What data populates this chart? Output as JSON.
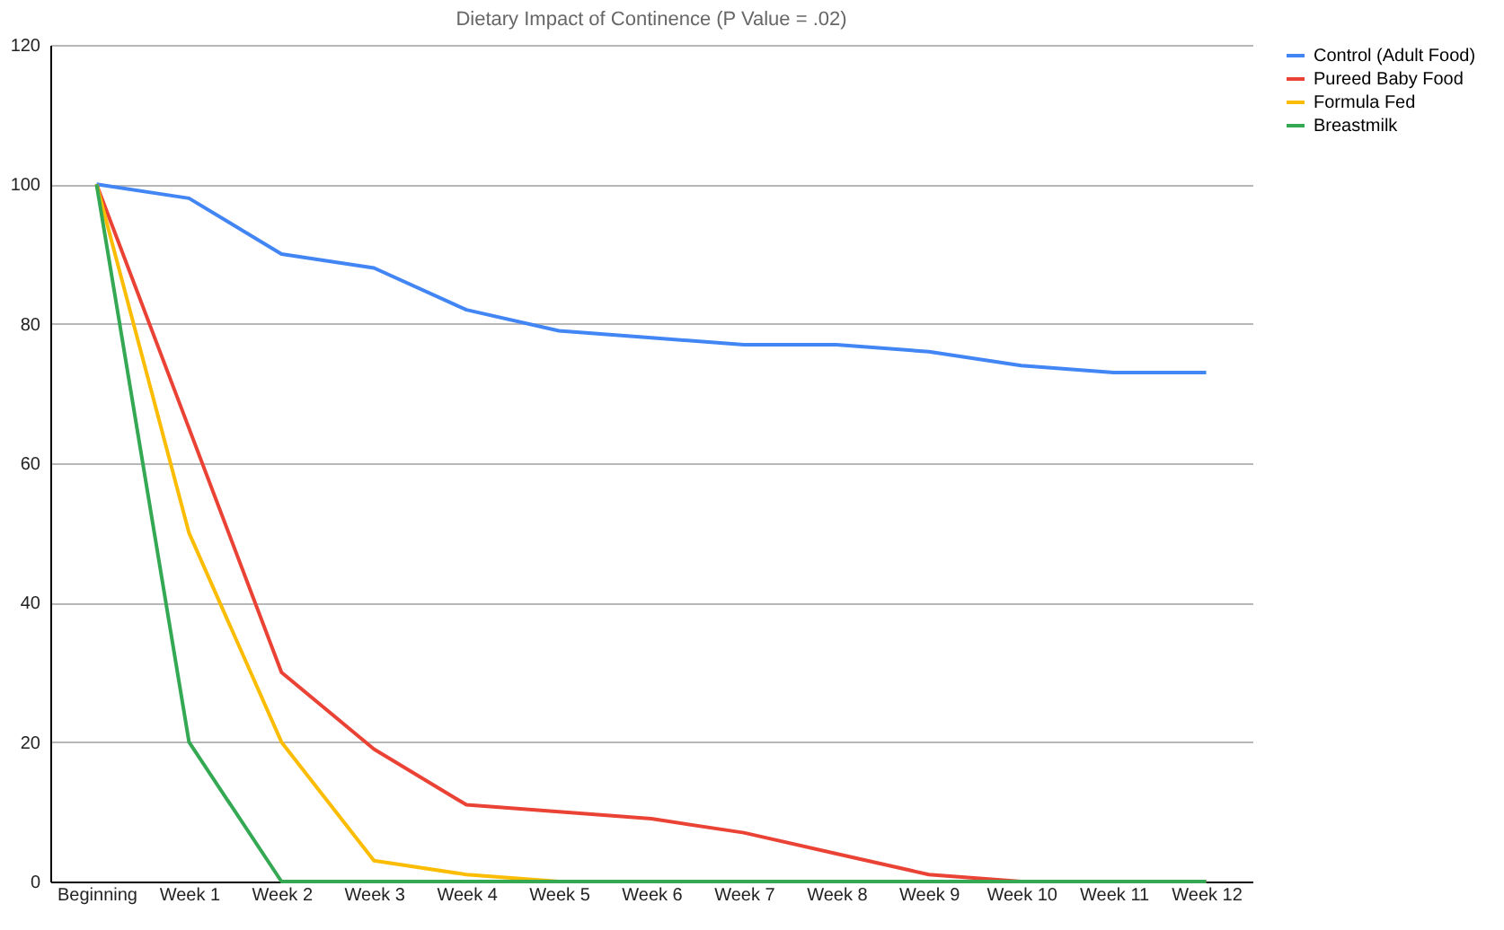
{
  "chart_data": {
    "type": "line",
    "title": "Dietary Impact of Continence (P Value = .02)",
    "categories": [
      "Beginning",
      "Week 1",
      "Week 2",
      "Week 3",
      "Week 4",
      "Week 5",
      "Week 6",
      "Week 7",
      "Week 8",
      "Week 9",
      "Week 10",
      "Week 11",
      "Week 12"
    ],
    "series": [
      {
        "name": "Control (Adult Food)",
        "color": "#4285f4",
        "values": [
          100,
          98,
          90,
          88,
          82,
          79,
          78,
          77,
          77,
          76,
          74,
          73,
          73
        ]
      },
      {
        "name": "Pureed Baby Food",
        "color": "#ea4335",
        "values": [
          100,
          65,
          30,
          19,
          11,
          10,
          9,
          7,
          4,
          1,
          0,
          0,
          0
        ]
      },
      {
        "name": "Formula Fed",
        "color": "#fbbc04",
        "values": [
          100,
          50,
          20,
          3,
          1,
          0,
          null,
          null,
          null,
          null,
          null,
          null,
          null
        ]
      },
      {
        "name": "Breastmilk",
        "color": "#34a853",
        "values": [
          100,
          20,
          0,
          0,
          0,
          0,
          0,
          0,
          0,
          0,
          0,
          0,
          0
        ]
      }
    ],
    "ylim": [
      0,
      120
    ],
    "yticks": [
      0,
      20,
      40,
      60,
      80,
      100,
      120
    ],
    "grid": "y",
    "legend": "right",
    "marker": "none",
    "line_style": "solid"
  }
}
